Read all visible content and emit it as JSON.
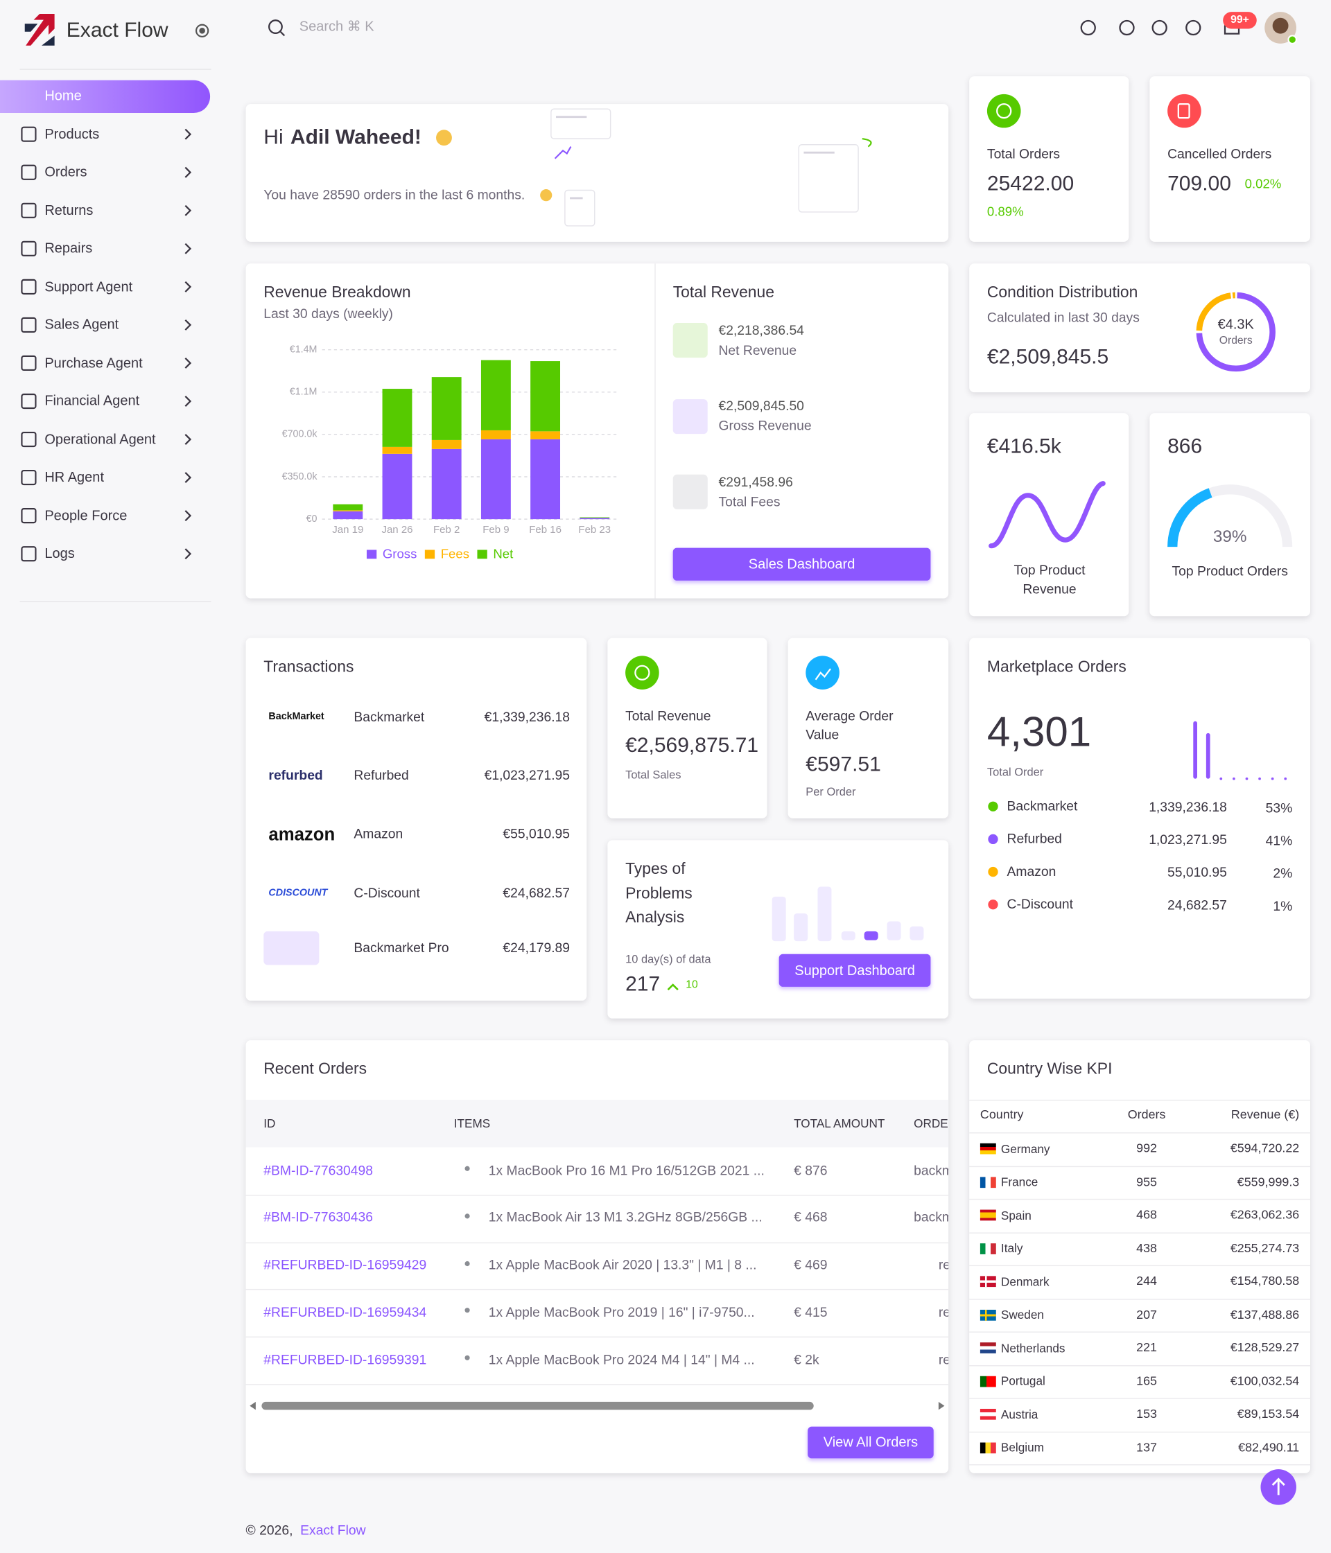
{
  "brand": "Exact Flow",
  "search": "Search ⌘ K",
  "badge": "99+",
  "nav": [
    "Home",
    "Products",
    "Orders",
    "Returns",
    "Repairs",
    "Support Agent",
    "Sales Agent",
    "Purchase Agent",
    "Financial Agent",
    "Operational Agent",
    "HR Agent",
    "People Force",
    "Logs"
  ],
  "welcome": {
    "greeting": "Hi",
    "name": "Adil Waheed!",
    "message": "You have 28590 orders in the last 6 months."
  },
  "total_orders": {
    "label": "Total Orders",
    "value": "25422.00",
    "change": "0.89%"
  },
  "cancelled_orders": {
    "label": "Cancelled Orders",
    "value": "709.00",
    "change": "0.02%"
  },
  "revenue_breakdown": {
    "title": "Revenue Breakdown",
    "subtitle": "Last 30 days (weekly)",
    "chart": {
      "type": "bar",
      "stacked": true,
      "categories": [
        "Jan 19",
        "Jan 26",
        "Feb 2",
        "Feb 9",
        "Feb 16",
        "Feb 23"
      ],
      "series": [
        {
          "name": "Gross",
          "color": "#8c57ff",
          "values": [
            65000,
            540000,
            580000,
            660000,
            660000,
            10000
          ]
        },
        {
          "name": "Fees",
          "color": "#ffb400",
          "values": [
            8000,
            57000,
            74000,
            74000,
            66000,
            0
          ]
        },
        {
          "name": "Net",
          "color": "#56ca00",
          "values": [
            50000,
            480000,
            520000,
            580000,
            580000,
            5000
          ]
        }
      ],
      "ylim": [
        0,
        1400000
      ],
      "yticks": [
        {
          "value": 0,
          "label": "€0"
        },
        {
          "value": 350000,
          "label": "€350.0k"
        },
        {
          "value": 700000,
          "label": "€700.0k"
        },
        {
          "value": 1050000,
          "label": "€1.1M"
        },
        {
          "value": 1400000,
          "label": "€1.4M"
        }
      ],
      "grid": true
    }
  },
  "total_revenue": {
    "title": "Total Revenue",
    "items": [
      {
        "value": "€2,218,386.54",
        "label": "Net Revenue"
      },
      {
        "value": "€2,509,845.50",
        "label": "Gross Revenue"
      },
      {
        "value": "€291,458.96",
        "label": "Total Fees"
      }
    ],
    "button": "Sales Dashboard"
  },
  "condition_distribution": {
    "title": "Condition Distribution",
    "subtitle": "Calculated in last 30 days",
    "value": "€2,509,845.5",
    "ring_value": "€4.3K",
    "ring_label": "Orders"
  },
  "top_product_revenue": {
    "value": "€416.5k",
    "label": "Top Product Revenue"
  },
  "top_product_orders": {
    "value": "866",
    "percent": 39,
    "percent_label": "39%",
    "label": "Top Product Orders"
  },
  "transactions": {
    "title": "Transactions",
    "rows": [
      {
        "logo": "BackMarket",
        "name": "Backmarket",
        "amount": "€1,339,236.18"
      },
      {
        "logo": "refurbed",
        "name": "Refurbed",
        "amount": "€1,023,271.95"
      },
      {
        "logo": "amazon",
        "name": "Amazon",
        "amount": "€55,010.95"
      },
      {
        "logo": "CDISCOUNT",
        "name": "C-Discount",
        "amount": "€24,682.57"
      },
      {
        "name": "Backmarket Pro",
        "amount": "€24,179.89"
      }
    ]
  },
  "sales_card": {
    "label": "Total Revenue",
    "value": "€2,569,875.71",
    "note": "Total Sales"
  },
  "average_order": {
    "label": "Average Order Value",
    "value": "€597.51",
    "note": "Per Order"
  },
  "problems": {
    "title": "Types of Problems Analysis",
    "note": "10 day(s) of data",
    "value": "217",
    "change": "10",
    "button": "Support Dashboard"
  },
  "marketplace": {
    "title": "Marketplace Orders",
    "value": "4,301",
    "label": "Total Order",
    "rows": [
      {
        "name": "Backmarket",
        "color": "#56ca00",
        "amount": "1,339,236.18",
        "share": "53%"
      },
      {
        "name": "Refurbed",
        "color": "#8c57ff",
        "amount": "1,023,271.95",
        "share": "41%"
      },
      {
        "name": "Amazon",
        "color": "#ffb400",
        "amount": "55,010.95",
        "share": "2%"
      },
      {
        "name": "C-Discount",
        "color": "#ff4c51",
        "amount": "24,682.57",
        "share": "1%"
      }
    ]
  },
  "recent_orders": {
    "title": "Recent Orders",
    "columns": [
      "ID",
      "ITEMS",
      "TOTAL AMOUNT",
      "ORDER"
    ],
    "rows": [
      {
        "id": "#BM-ID-77630498",
        "item": "1x MacBook Pro 16 M1 Pro 16/512GB 2021 ...",
        "amount": "€ 876",
        "source": "backmarket"
      },
      {
        "id": "#BM-ID-77630436",
        "item": "1x MacBook Air 13 M1 3.2GHz 8GB/256GB ...",
        "amount": "€ 468",
        "source": "backmarket"
      },
      {
        "id": "#REFURBED-ID-16959429",
        "item": "1x Apple MacBook Air 2020 | 13.3\" | M1 | 8 ...",
        "amount": "€ 469",
        "source": "refurbed"
      },
      {
        "id": "#REFURBED-ID-16959434",
        "item": "1x Apple MacBook Pro 2019 | 16\" | i7-9750...",
        "amount": "€ 415",
        "source": "refurbed"
      },
      {
        "id": "#REFURBED-ID-16959391",
        "item": "1x Apple MacBook Pro 2024 M4 | 14\" | M4 ...",
        "amount": "€ 2k",
        "source": "refurbed"
      }
    ],
    "button": "View All Orders"
  },
  "country_kpi": {
    "title": "Country Wise KPI",
    "columns": [
      "Country",
      "Orders",
      "Revenue (€)"
    ],
    "rows": [
      [
        "Germany",
        "992",
        "€594,720.22"
      ],
      [
        "France",
        "955",
        "€559,999.3"
      ],
      [
        "Spain",
        "468",
        "€263,062.36"
      ],
      [
        "Italy",
        "438",
        "€255,274.73"
      ],
      [
        "Denmark",
        "244",
        "€154,780.58"
      ],
      [
        "Sweden",
        "207",
        "€137,488.86"
      ],
      [
        "Netherlands",
        "221",
        "€128,529.27"
      ],
      [
        "Portugal",
        "165",
        "€100,032.54"
      ],
      [
        "Austria",
        "153",
        "€89,153.54"
      ],
      [
        "Belgium",
        "137",
        "€82,490.11"
      ]
    ]
  },
  "footer": {
    "copyright": "© 2026,",
    "link": "Exact Flow"
  }
}
